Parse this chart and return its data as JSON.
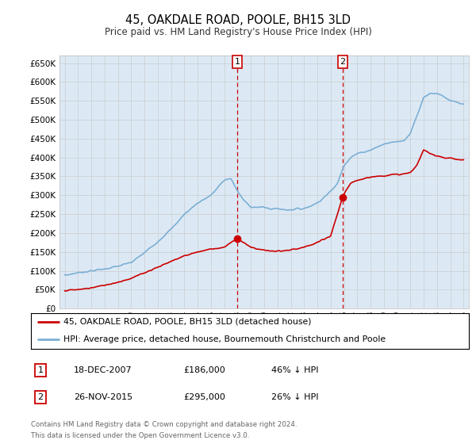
{
  "title": "45, OAKDALE ROAD, POOLE, BH15 3LD",
  "subtitle": "Price paid vs. HM Land Registry's House Price Index (HPI)",
  "legend_line1": "45, OAKDALE ROAD, POOLE, BH15 3LD (detached house)",
  "legend_line2": "HPI: Average price, detached house, Bournemouth Christchurch and Poole",
  "table_rows": [
    {
      "num": "1",
      "date": "18-DEC-2007",
      "price": "£186,000",
      "pct": "46% ↓ HPI"
    },
    {
      "num": "2",
      "date": "26-NOV-2015",
      "price": "£295,000",
      "pct": "26% ↓ HPI"
    }
  ],
  "footnote1": "Contains HM Land Registry data © Crown copyright and database right 2024.",
  "footnote2": "This data is licensed under the Open Government Licence v3.0.",
  "marker1_x": 2007.97,
  "marker1_y": 186000,
  "marker2_x": 2015.9,
  "marker2_y": 295000,
  "vline1_x": 2007.97,
  "vline2_x": 2015.9,
  "price_line_color": "#cc0000",
  "hpi_line_color": "#7bafd4",
  "background_color": "#dce9f5",
  "vline_color": "#cc0000",
  "grid_color": "#cccccc",
  "ylim": [
    0,
    670000
  ],
  "xlim_start": 1994.6,
  "xlim_end": 2025.4,
  "yticks": [
    0,
    50000,
    100000,
    150000,
    200000,
    250000,
    300000,
    350000,
    400000,
    450000,
    500000,
    550000,
    600000,
    650000
  ],
  "xtick_years": [
    1995,
    1996,
    1997,
    1998,
    1999,
    2000,
    2001,
    2002,
    2003,
    2004,
    2005,
    2006,
    2007,
    2008,
    2009,
    2010,
    2011,
    2012,
    2013,
    2014,
    2015,
    2016,
    2017,
    2018,
    2019,
    2020,
    2021,
    2022,
    2023,
    2024,
    2025
  ],
  "hpi_key_x": [
    1995,
    1996,
    1997,
    1998,
    1999,
    2000,
    2001,
    2002,
    2003,
    2004,
    2005,
    2006,
    2007,
    2007.5,
    2008,
    2008.5,
    2009,
    2009.5,
    2010,
    2010.5,
    2011,
    2011.5,
    2012,
    2012.5,
    2013,
    2013.5,
    2014,
    2014.5,
    2015,
    2015.5,
    2016,
    2016.5,
    2017,
    2017.5,
    2018,
    2018.5,
    2019,
    2019.5,
    2020,
    2020.5,
    2021,
    2021.5,
    2022,
    2022.5,
    2023,
    2023.5,
    2024,
    2024.5,
    2025
  ],
  "hpi_key_y": [
    88000,
    95000,
    100000,
    105000,
    112000,
    122000,
    148000,
    178000,
    210000,
    250000,
    280000,
    300000,
    340000,
    345000,
    310000,
    285000,
    270000,
    268000,
    268000,
    264000,
    265000,
    262000,
    262000,
    264000,
    265000,
    272000,
    280000,
    295000,
    310000,
    330000,
    380000,
    400000,
    410000,
    415000,
    420000,
    428000,
    435000,
    440000,
    442000,
    445000,
    465000,
    510000,
    560000,
    570000,
    570000,
    560000,
    550000,
    545000,
    540000
  ],
  "price_key_x": [
    1995,
    1996,
    1997,
    1998,
    1999,
    2000,
    2001,
    2002,
    2003,
    2004,
    2005,
    2006,
    2007,
    2007.97,
    2008.1,
    2008.5,
    2009,
    2009.5,
    2010,
    2010.5,
    2011,
    2011.5,
    2012,
    2012.5,
    2013,
    2013.5,
    2014,
    2014.5,
    2015,
    2015.9,
    2016.1,
    2016.5,
    2017,
    2017.5,
    2018,
    2018.5,
    2019,
    2019.5,
    2020,
    2020.5,
    2021,
    2021.5,
    2022,
    2022.5,
    2023,
    2023.5,
    2024,
    2024.5,
    2025
  ],
  "price_key_y": [
    48000,
    50000,
    55000,
    62000,
    70000,
    80000,
    95000,
    110000,
    125000,
    140000,
    150000,
    158000,
    162000,
    186000,
    182000,
    175000,
    162000,
    158000,
    155000,
    152000,
    152000,
    153000,
    155000,
    158000,
    162000,
    168000,
    175000,
    183000,
    192000,
    295000,
    310000,
    330000,
    340000,
    345000,
    348000,
    350000,
    352000,
    354000,
    355000,
    356000,
    360000,
    380000,
    420000,
    410000,
    405000,
    400000,
    398000,
    395000,
    393000
  ]
}
